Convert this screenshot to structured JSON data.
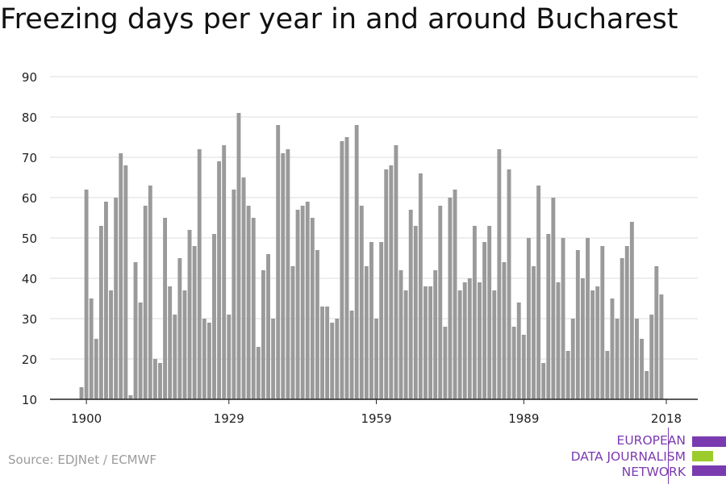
{
  "title": "Freezing days per year in and around Bucharest",
  "source": "Source: EDJNet / ECMWF",
  "logo": {
    "lines": [
      "EUROPEAN",
      "DATA JOURNALISM",
      "NETWORK"
    ],
    "colors": {
      "text": "#7b3bb0",
      "bar_primary": "#7b3bb0",
      "bar_accent": "#9ccc2c"
    }
  },
  "colors": {
    "bar": "#9a9a9a",
    "grid": "#dddddd",
    "axis": "#222222"
  },
  "chart_data": {
    "type": "bar",
    "title": "Freezing days per year in and around Bucharest",
    "xlabel": "",
    "ylabel": "",
    "x_ticks": [
      1900,
      1929,
      1959,
      1989,
      2018
    ],
    "y_ticks": [
      10,
      20,
      30,
      40,
      50,
      60,
      70,
      80,
      90
    ],
    "ylim": [
      10,
      90
    ],
    "grid": true,
    "x": [
      1899,
      1900,
      1901,
      1902,
      1903,
      1904,
      1905,
      1906,
      1907,
      1908,
      1909,
      1910,
      1911,
      1912,
      1913,
      1914,
      1915,
      1916,
      1917,
      1918,
      1919,
      1920,
      1921,
      1922,
      1923,
      1924,
      1925,
      1926,
      1927,
      1928,
      1929,
      1930,
      1931,
      1932,
      1933,
      1934,
      1935,
      1936,
      1937,
      1938,
      1939,
      1940,
      1941,
      1942,
      1943,
      1944,
      1945,
      1946,
      1947,
      1948,
      1949,
      1950,
      1951,
      1952,
      1953,
      1954,
      1955,
      1956,
      1957,
      1958,
      1959,
      1960,
      1961,
      1962,
      1963,
      1964,
      1965,
      1966,
      1967,
      1968,
      1969,
      1970,
      1971,
      1972,
      1973,
      1974,
      1975,
      1976,
      1977,
      1978,
      1979,
      1980,
      1981,
      1982,
      1983,
      1984,
      1985,
      1986,
      1987,
      1988,
      1989,
      1990,
      1991,
      1992,
      1993,
      1994,
      1995,
      1996,
      1997,
      1998,
      1999,
      2000,
      2001,
      2002,
      2003,
      2004,
      2005,
      2006,
      2007,
      2008,
      2009,
      2010,
      2011,
      2012,
      2013,
      2014,
      2015,
      2016,
      2017,
      2018
    ],
    "values": [
      13,
      62,
      35,
      25,
      53,
      59,
      37,
      60,
      71,
      68,
      11,
      44,
      34,
      58,
      63,
      20,
      19,
      55,
      38,
      31,
      45,
      37,
      52,
      48,
      72,
      30,
      29,
      51,
      69,
      73,
      31,
      62,
      81,
      65,
      58,
      55,
      23,
      42,
      46,
      30,
      78,
      71,
      72,
      43,
      57,
      58,
      59,
      55,
      47,
      33,
      33,
      29,
      30,
      74,
      75,
      32,
      78,
      58,
      43,
      49,
      30,
      49,
      67,
      68,
      73,
      42,
      37,
      57,
      53,
      66,
      38,
      38,
      42,
      58,
      28,
      60,
      62,
      37,
      39,
      40,
      53,
      39,
      49,
      53,
      37,
      72,
      44,
      67,
      28,
      34,
      26,
      50,
      43,
      63,
      19,
      51,
      60,
      39,
      50,
      22,
      30,
      47,
      40,
      50,
      37,
      38,
      48,
      22,
      35,
      30,
      45,
      48,
      54,
      30,
      25,
      17,
      31,
      43,
      36,
      null
    ]
  }
}
